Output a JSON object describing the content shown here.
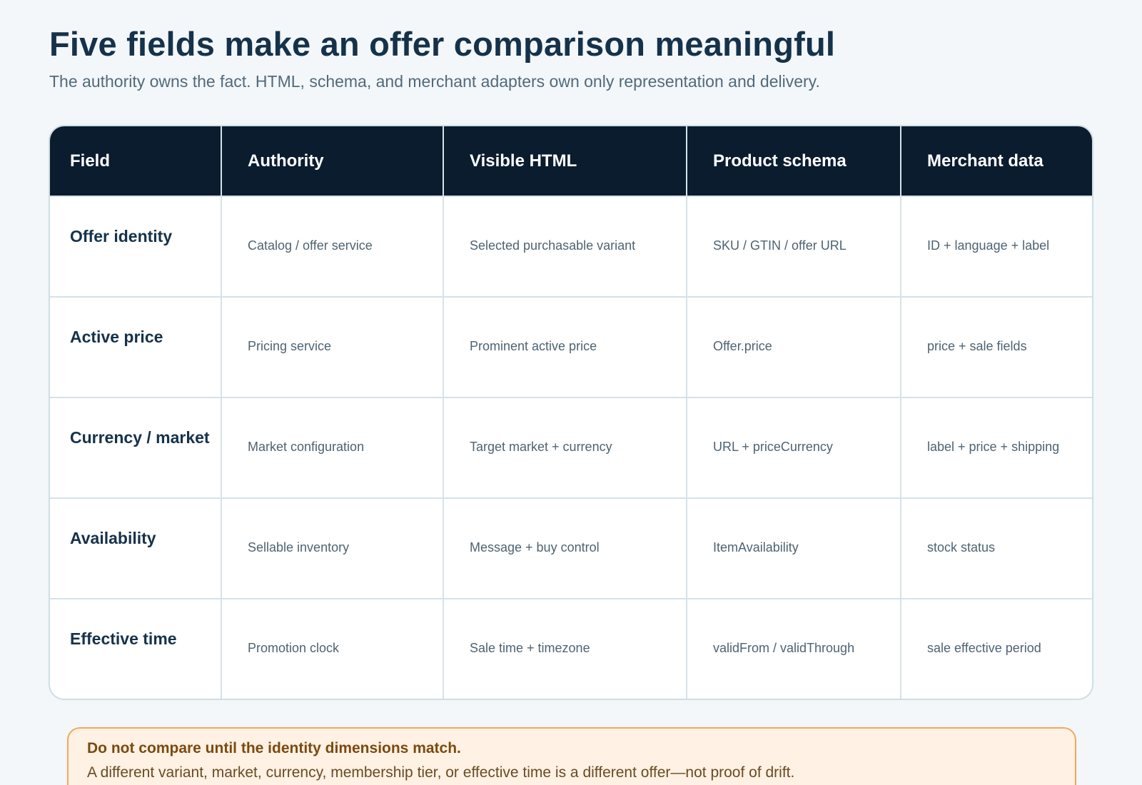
{
  "header": {
    "title": "Five fields make an offer comparison meaningful",
    "subtitle": "The authority owns the fact. HTML, schema, and merchant adapters own only representation and delivery."
  },
  "table": {
    "columns": [
      "Field",
      "Authority",
      "Visible HTML",
      "Product schema",
      "Merchant data"
    ],
    "rows": [
      [
        "Offer identity",
        "Catalog / offer service",
        "Selected purchasable variant",
        "SKU / GTIN / offer URL",
        "ID + language + label"
      ],
      [
        "Active price",
        "Pricing service",
        "Prominent active price",
        "Offer.price",
        "price + sale fields"
      ],
      [
        "Currency / market",
        "Market configuration",
        "Target market + currency",
        "URL + priceCurrency",
        "label + price + shipping"
      ],
      [
        "Availability",
        "Sellable inventory",
        "Message + buy control",
        "ItemAvailability",
        "stock status"
      ],
      [
        "Effective time",
        "Promotion clock",
        "Sale time + timezone",
        "validFrom / validThrough",
        "sale effective period"
      ]
    ]
  },
  "callout": {
    "heading": "Do not compare until the identity dimensions match.",
    "body": "A different variant, market, currency, membership tier, or effective time is a different offer—not proof of drift."
  }
}
